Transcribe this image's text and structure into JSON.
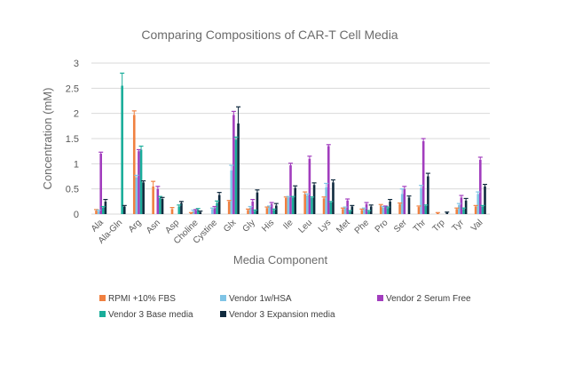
{
  "chart_data": {
    "type": "bar",
    "title": "Comparing Compositions of CAR-T Cell Media",
    "xlabel": "Media Component",
    "ylabel": "Concentration (mM)",
    "ylim": [
      0,
      3
    ],
    "yticks": [
      "0",
      "0.5",
      "1",
      "1.5",
      "2",
      "2.5",
      "3"
    ],
    "ytick_values": [
      0,
      0.5,
      1,
      1.5,
      2,
      2.5,
      3
    ],
    "grid": true,
    "legend_position": "bottom",
    "error_bars": true,
    "categories": [
      "Ala",
      "Ala-Gln",
      "Arg",
      "Asn",
      "Asp",
      "Choline",
      "Cystine",
      "Glx",
      "Gly",
      "His",
      "Ile",
      "Leu",
      "Lys",
      "Met",
      "Phe",
      "Pro",
      "Ser",
      "Thr",
      "Trp",
      "Tyr",
      "Val"
    ],
    "series": [
      {
        "name": "RPMI +10% FBS",
        "color": "#f08040",
        "values": [
          0.07,
          0,
          1.97,
          0.55,
          0.1,
          0.02,
          0,
          0.25,
          0.08,
          0.12,
          0.32,
          0.4,
          0.31,
          0.1,
          0.08,
          0.17,
          0.2,
          0.14,
          0.02,
          0.1,
          0.15
        ],
        "errors": [
          0.02,
          0,
          0.08,
          0.1,
          0.03,
          0.01,
          0,
          0.02,
          0.02,
          0.02,
          0.02,
          0.04,
          0.03,
          0.02,
          0.02,
          0.02,
          0.02,
          0.02,
          0.01,
          0.02,
          0.02
        ]
      },
      {
        "name": "Vendor 1w/HSA",
        "color": "#7fc4e6",
        "values": [
          0.06,
          0,
          0.73,
          0,
          0,
          0.06,
          0.1,
          0.87,
          0.13,
          0.14,
          0.33,
          0.37,
          0.53,
          0.12,
          0.1,
          0.13,
          0.4,
          0.52,
          0,
          0.18,
          0.4
        ],
        "errors": [
          0.02,
          0,
          0.04,
          0,
          0,
          0.02,
          0.02,
          0.1,
          0.02,
          0.02,
          0.02,
          0.03,
          0.08,
          0.02,
          0.02,
          0.02,
          0.1,
          0.05,
          0,
          0.03,
          0.04
        ]
      },
      {
        "name": "Vendor 2 Serum Free",
        "color": "#a23dbe",
        "values": [
          1.2,
          0,
          1.25,
          0.5,
          0,
          0.07,
          0.12,
          1.97,
          0.25,
          0.2,
          0.97,
          1.1,
          1.35,
          0.27,
          0.2,
          0.14,
          0.5,
          1.45,
          0,
          0.33,
          1.08
        ],
        "errors": [
          0.03,
          0,
          0.03,
          0.05,
          0,
          0.02,
          0.03,
          0.07,
          0.04,
          0.03,
          0.04,
          0.05,
          0.03,
          0.03,
          0.03,
          0.02,
          0.05,
          0.05,
          0,
          0.04,
          0.05
        ]
      },
      {
        "name": "Vendor 3 Base media",
        "color": "#1aad9a",
        "values": [
          0.13,
          2.55,
          1.28,
          0.32,
          0.15,
          0.08,
          0.22,
          1.48,
          0.06,
          0.08,
          0.33,
          0.32,
          0.23,
          0.05,
          0.05,
          0.12,
          0,
          0.16,
          0,
          0.1,
          0.15
        ],
        "errors": [
          0.02,
          0.25,
          0.07,
          0.03,
          0.03,
          0.03,
          0.04,
          0.05,
          0.02,
          0.02,
          0.02,
          0.02,
          0.02,
          0.02,
          0.02,
          0.02,
          0,
          0.02,
          0,
          0.02,
          0.02
        ]
      },
      {
        "name": "Vendor 3 Expansion media",
        "color": "#0f2a3e",
        "values": [
          0.25,
          0.15,
          0.63,
          0.3,
          0.22,
          0.04,
          0.38,
          1.8,
          0.43,
          0.17,
          0.52,
          0.58,
          0.63,
          0.15,
          0.15,
          0.25,
          0.33,
          0.75,
          0.03,
          0.27,
          0.55
        ],
        "errors": [
          0.04,
          0.02,
          0.03,
          0.03,
          0.03,
          0.02,
          0.05,
          0.33,
          0.05,
          0.04,
          0.04,
          0.04,
          0.05,
          0.02,
          0.03,
          0.04,
          0.03,
          0.06,
          0.01,
          0.04,
          0.04
        ]
      }
    ]
  }
}
